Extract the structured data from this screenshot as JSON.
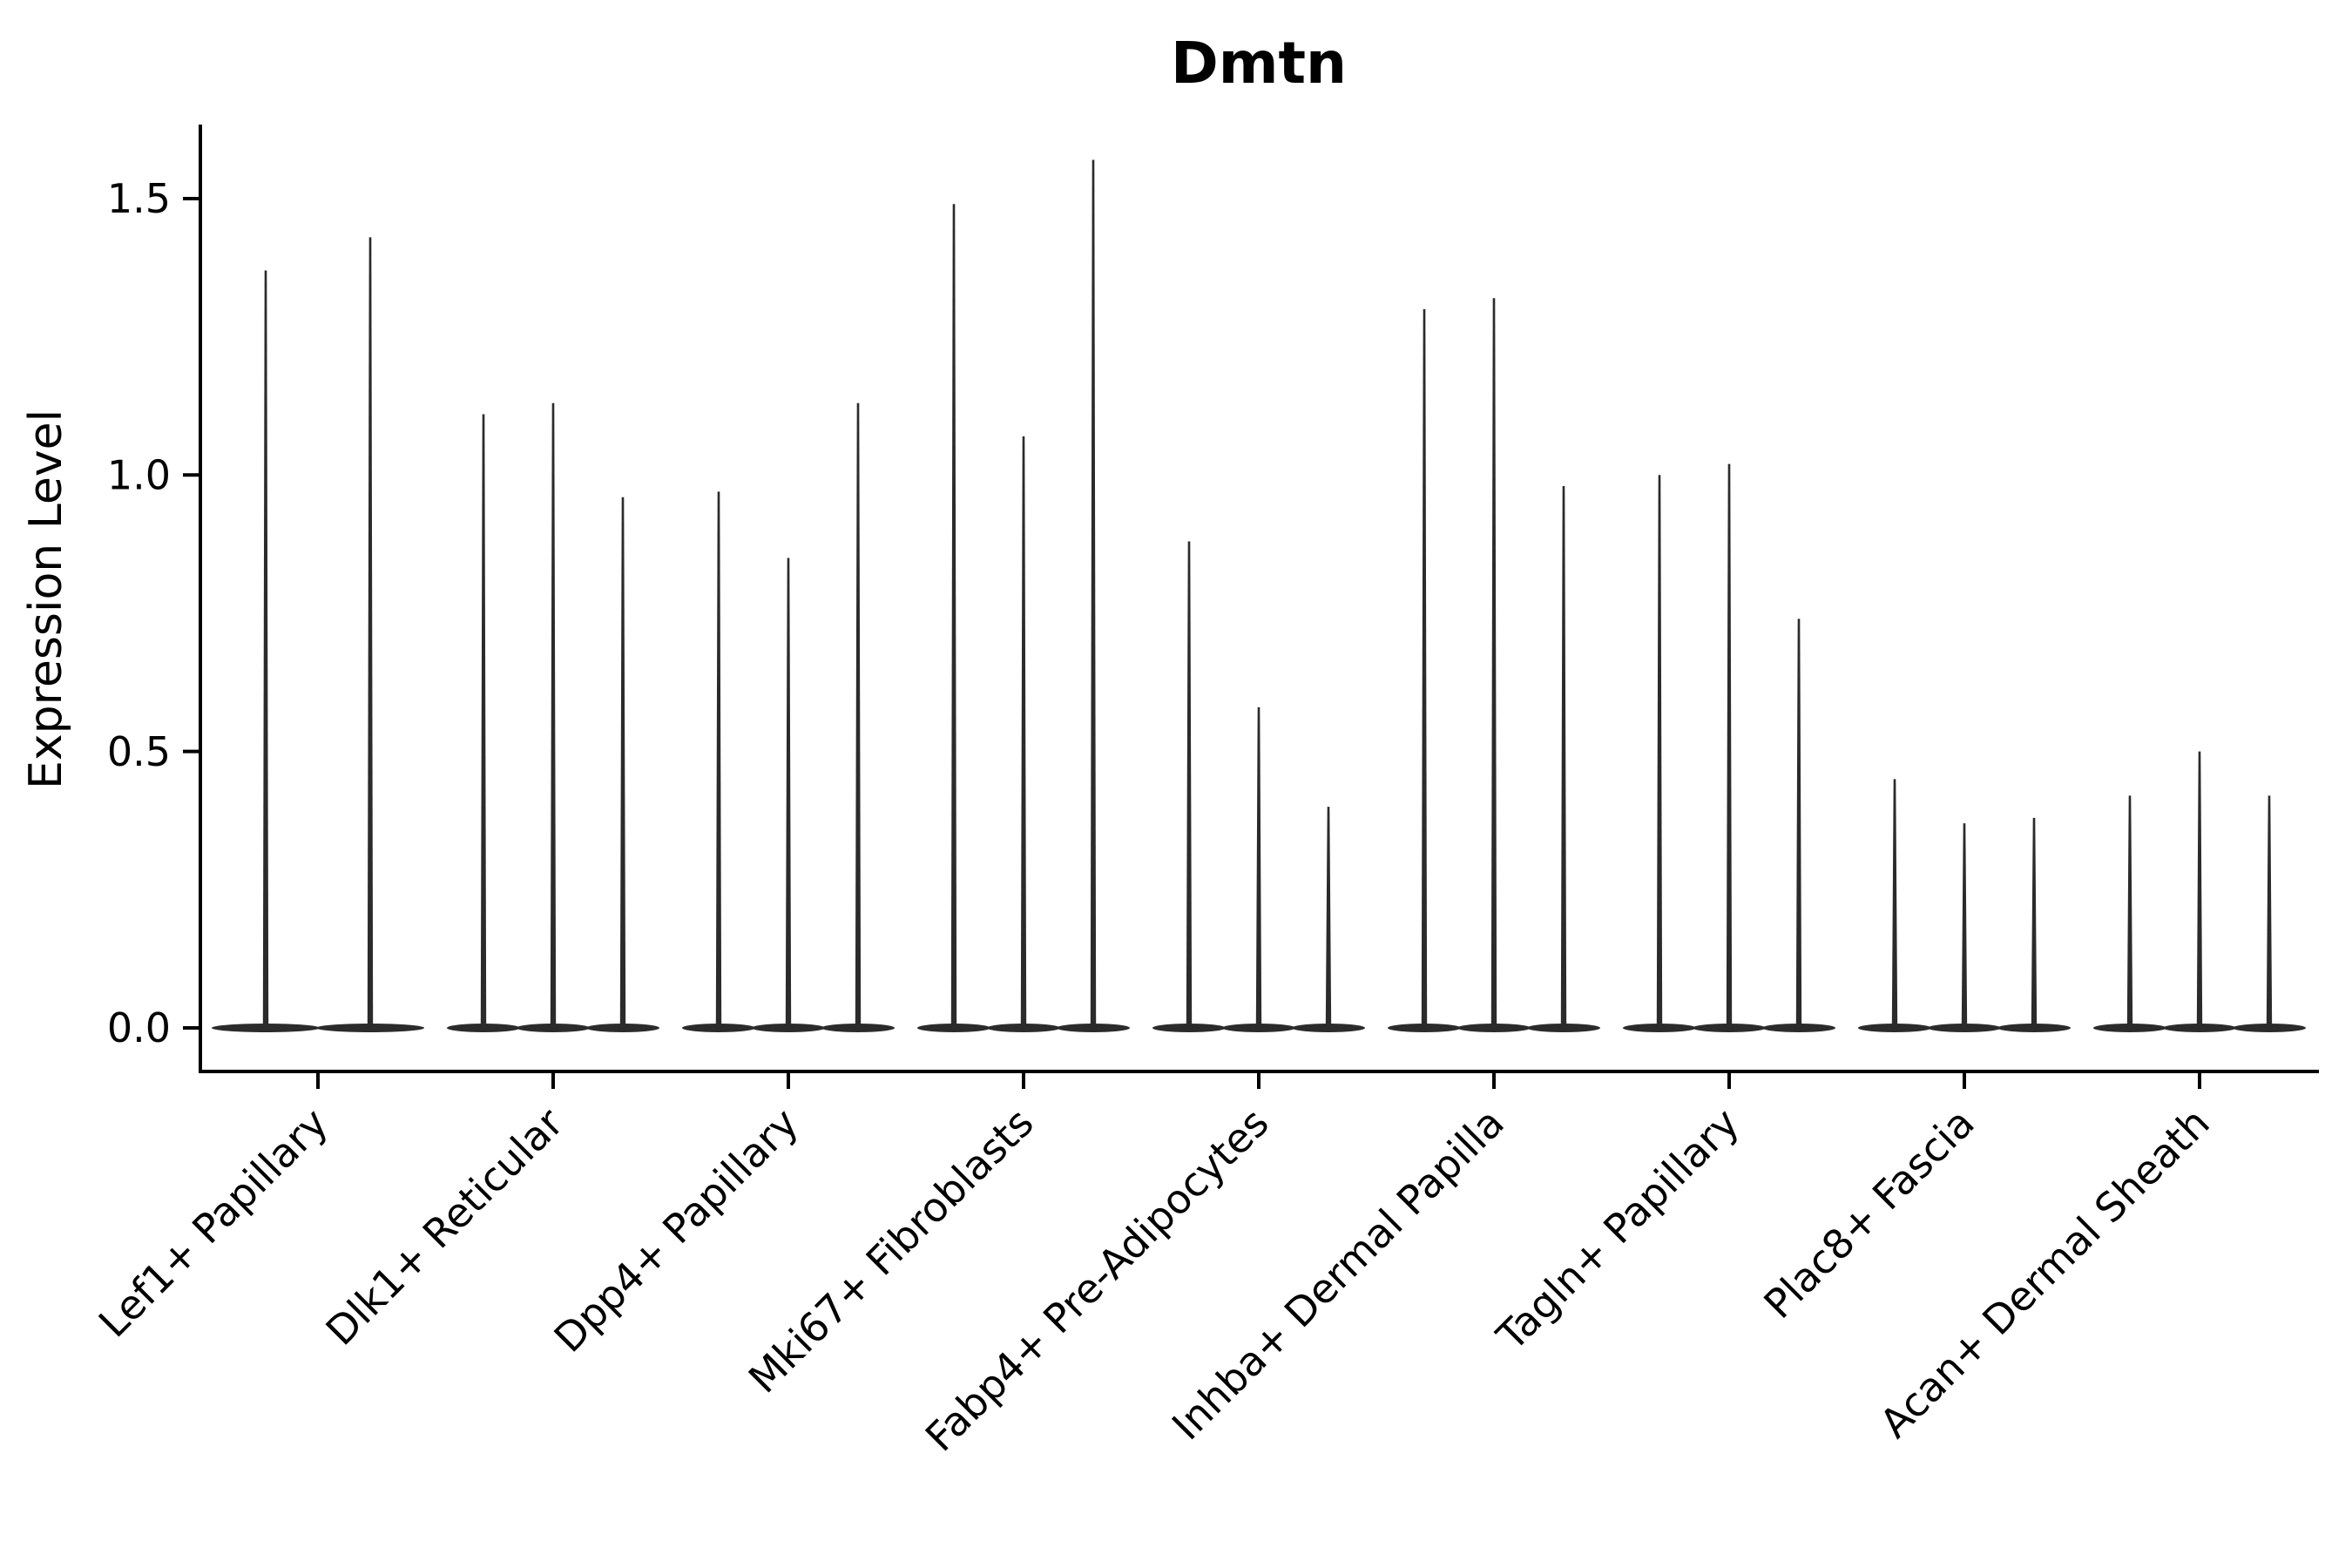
{
  "chart_data": {
    "type": "violin",
    "title": "Dmtn",
    "ylabel": "Expression Level",
    "xlabel": "",
    "categories": [
      "Lef1+ Papillary",
      "Dlk1+ Reticular",
      "Dpp4+ Papillary",
      "Mki67+ Fibroblasts",
      "Fabp4+ Pre-Adipocytes",
      "Inhba+ Dermal Papilla",
      "Tagln+ Papillary",
      "Plac8+ Fascia",
      "Acan+ Dermal Sheath"
    ],
    "series": [
      {
        "category": "Lef1+ Papillary",
        "violin_max": [
          1.37,
          1.43
        ]
      },
      {
        "category": "Dlk1+ Reticular",
        "violin_max": [
          1.11,
          1.13,
          0.96
        ]
      },
      {
        "category": "Dpp4+ Papillary",
        "violin_max": [
          0.97,
          0.85,
          1.13
        ]
      },
      {
        "category": "Mki67+ Fibroblasts",
        "violin_max": [
          1.49,
          1.07,
          1.57
        ]
      },
      {
        "category": "Fabp4+ Pre-Adipocytes",
        "violin_max": [
          0.88,
          0.58,
          0.4
        ]
      },
      {
        "category": "Inhba+ Dermal Papilla",
        "violin_max": [
          1.3,
          1.32,
          0.98
        ]
      },
      {
        "category": "Tagln+ Papillary",
        "violin_max": [
          1.0,
          1.02,
          0.74
        ]
      },
      {
        "category": "Plac8+ Fascia",
        "violin_max": [
          0.45,
          0.37,
          0.38
        ]
      },
      {
        "category": "Acan+ Dermal Sheath",
        "violin_max": [
          0.42,
          0.5,
          0.42
        ]
      }
    ],
    "violin_baseline": 0.0,
    "yticks": [
      "0.0",
      "0.5",
      "1.0",
      "1.5"
    ],
    "ytick_values": [
      0.0,
      0.5,
      1.0,
      1.5
    ],
    "ylim": [
      -0.08,
      1.63
    ],
    "grid": false,
    "legend": "none",
    "colors": {
      "violin": "#2b2b2b",
      "axis": "#000000",
      "text": "#000000",
      "background": "#ffffff"
    }
  }
}
